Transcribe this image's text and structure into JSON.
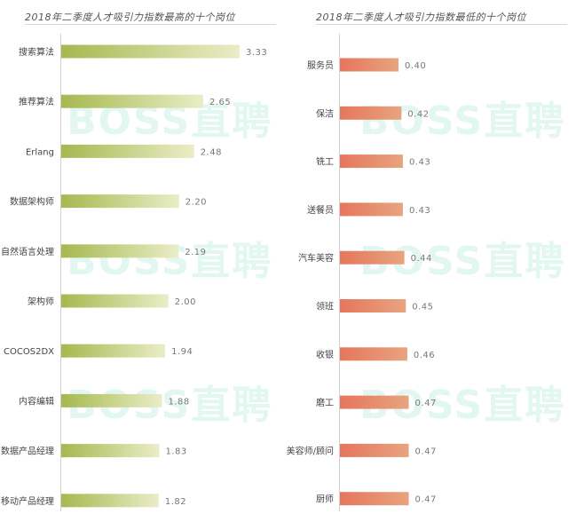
{
  "watermark": "BOSS直聘",
  "chart_data": [
    {
      "type": "bar",
      "orientation": "horizontal",
      "title": "2018年二季度人才吸引力指数最高的十个岗位",
      "categories": [
        "搜索算法",
        "推荐算法",
        "Erlang",
        "数据架构师",
        "自然语言处理",
        "架构师",
        "COCOS2DX",
        "内容编辑",
        "数据产品经理",
        "移动产品经理"
      ],
      "values": [
        3.33,
        2.65,
        2.48,
        2.2,
        2.19,
        2.0,
        1.94,
        1.88,
        1.83,
        1.82
      ],
      "value_labels": [
        "3.33",
        "2.65",
        "2.48",
        "2.20",
        "2.19",
        "2.00",
        "1.94",
        "1.88",
        "1.83",
        "1.82"
      ],
      "xlim": [
        0,
        3.6
      ],
      "colors": {
        "start": "#a6b84f",
        "end": "#eaedc7"
      }
    },
    {
      "type": "bar",
      "orientation": "horizontal",
      "title": "2018年二季度人才吸引力指数最低的十个岗位",
      "categories": [
        "服务员",
        "保洁",
        "铣工",
        "送餐员",
        "汽车美容",
        "领班",
        "收银",
        "磨工",
        "美容师/顾问",
        "厨师"
      ],
      "values": [
        0.4,
        0.42,
        0.43,
        0.43,
        0.44,
        0.45,
        0.46,
        0.47,
        0.47,
        0.47
      ],
      "value_labels": [
        "0.40",
        "0.42",
        "0.43",
        "0.43",
        "0.44",
        "0.45",
        "0.46",
        "0.47",
        "0.47",
        "0.47"
      ],
      "xlim": [
        0,
        0.5
      ],
      "colors": {
        "start": "#e5765d",
        "end": "#e8a47f"
      }
    }
  ]
}
